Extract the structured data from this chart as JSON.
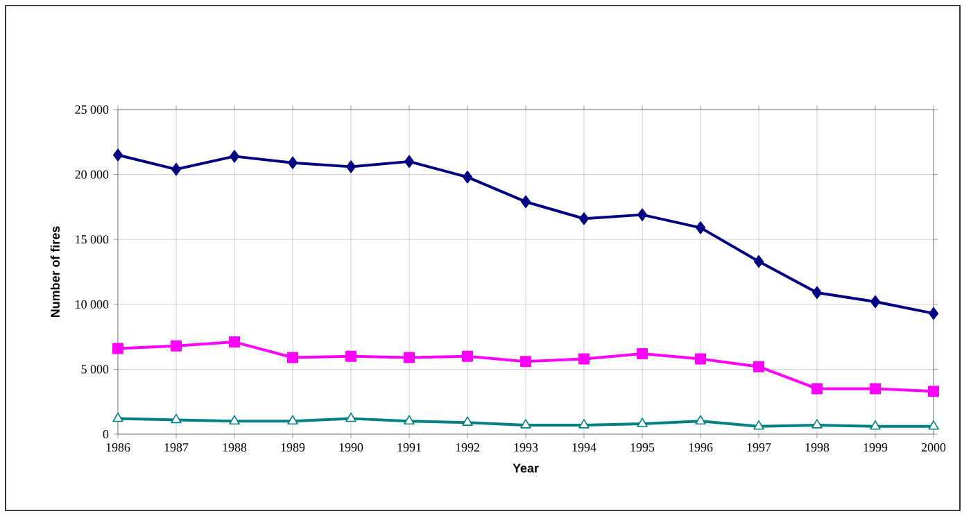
{
  "chart_data": {
    "type": "line",
    "xlabel": "Year",
    "ylabel": "Number of fires",
    "x": [
      1986,
      1987,
      1988,
      1989,
      1990,
      1991,
      1992,
      1993,
      1994,
      1995,
      1996,
      1997,
      1998,
      1999,
      2000
    ],
    "xlim": [
      1986,
      2000
    ],
    "xticks": [
      1986,
      1987,
      1988,
      1989,
      1990,
      1991,
      1992,
      1993,
      1994,
      1995,
      1996,
      1997,
      1998,
      1999,
      2000
    ],
    "ylim": [
      0,
      25000
    ],
    "yticks": [
      0,
      {
        "value": 5000,
        "label": "5 000"
      },
      {
        "value": 10000,
        "label": "10 000"
      },
      {
        "value": 15000,
        "label": "15 000"
      },
      {
        "value": 20000,
        "label": "20 000"
      },
      {
        "value": 25000,
        "label": "25 000"
      }
    ],
    "grid": true,
    "series": [
      {
        "color": "#000080",
        "marker": "diamond",
        "values": [
          21500,
          20400,
          21400,
          20900,
          20600,
          21000,
          19800,
          17900,
          16600,
          16900,
          15900,
          13300,
          10900,
          10200,
          9300
        ]
      },
      {
        "color": "#ff00ff",
        "marker": "square",
        "values": [
          6600,
          6800,
          7100,
          5900,
          6000,
          5900,
          6000,
          5600,
          5800,
          6200,
          5800,
          5200,
          3500,
          3500,
          3300
        ]
      },
      {
        "color": "#008080",
        "marker": "triangle",
        "values": [
          1200,
          1100,
          1000,
          1000,
          1200,
          1000,
          900,
          700,
          700,
          800,
          1000,
          600,
          700,
          600,
          600
        ]
      }
    ]
  }
}
